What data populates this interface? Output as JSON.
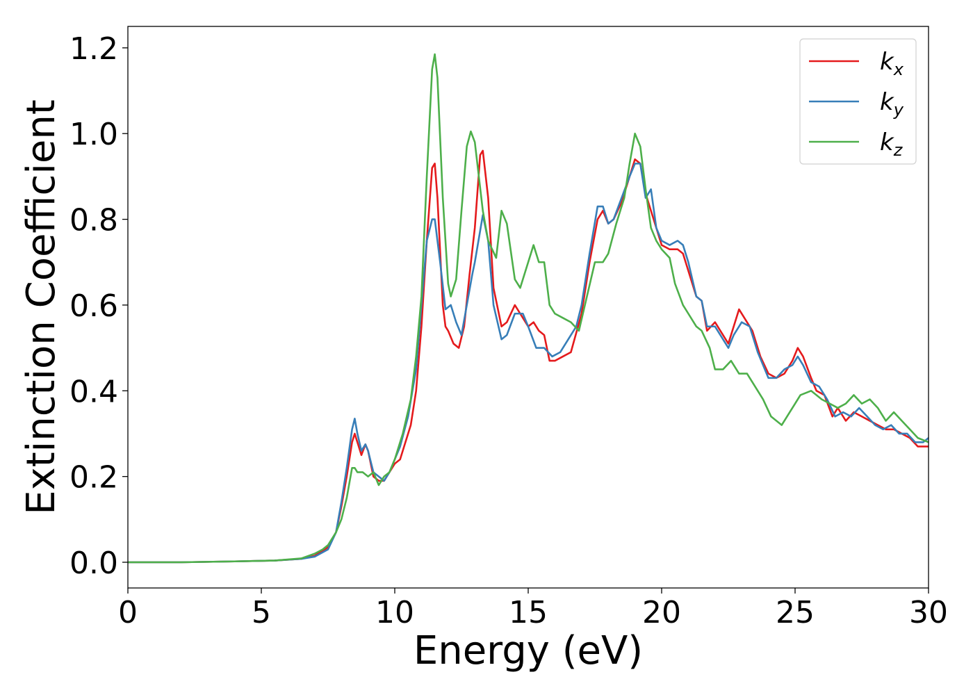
{
  "chart_data": {
    "type": "line",
    "title": "",
    "xlabel": "Energy (eV)",
    "ylabel": "Extinction Coefficient",
    "xlim": [
      0,
      30
    ],
    "ylim": [
      -0.06,
      1.25
    ],
    "xticks": [
      0,
      5,
      10,
      15,
      20,
      25,
      30
    ],
    "xtick_labels": [
      "0",
      "5",
      "10",
      "15",
      "20",
      "25",
      "30"
    ],
    "yticks": [
      0.0,
      0.2,
      0.4,
      0.6,
      0.8,
      1.0,
      1.2
    ],
    "ytick_labels": [
      "0.0",
      "0.2",
      "0.4",
      "0.6",
      "0.8",
      "1.0",
      "1.2"
    ],
    "grid": false,
    "legend_position": "top-right",
    "series": [
      {
        "name": "k",
        "subscript": "x",
        "color": "#e41a1c",
        "points": [
          [
            0,
            0.0
          ],
          [
            2,
            0.0
          ],
          [
            4,
            0.002
          ],
          [
            5.5,
            0.004
          ],
          [
            6.5,
            0.008
          ],
          [
            7.0,
            0.015
          ],
          [
            7.5,
            0.035
          ],
          [
            7.8,
            0.07
          ],
          [
            8.0,
            0.13
          ],
          [
            8.2,
            0.2
          ],
          [
            8.4,
            0.28
          ],
          [
            8.5,
            0.3
          ],
          [
            8.6,
            0.28
          ],
          [
            8.75,
            0.25
          ],
          [
            8.9,
            0.275
          ],
          [
            9.0,
            0.26
          ],
          [
            9.2,
            0.2
          ],
          [
            9.4,
            0.19
          ],
          [
            9.6,
            0.19
          ],
          [
            9.8,
            0.21
          ],
          [
            10.0,
            0.23
          ],
          [
            10.2,
            0.24
          ],
          [
            10.4,
            0.28
          ],
          [
            10.6,
            0.32
          ],
          [
            10.8,
            0.4
          ],
          [
            11.0,
            0.55
          ],
          [
            11.2,
            0.75
          ],
          [
            11.4,
            0.92
          ],
          [
            11.5,
            0.93
          ],
          [
            11.6,
            0.85
          ],
          [
            11.8,
            0.6
          ],
          [
            11.9,
            0.55
          ],
          [
            12.0,
            0.54
          ],
          [
            12.2,
            0.51
          ],
          [
            12.4,
            0.5
          ],
          [
            12.6,
            0.55
          ],
          [
            12.8,
            0.67
          ],
          [
            13.0,
            0.78
          ],
          [
            13.2,
            0.95
          ],
          [
            13.3,
            0.96
          ],
          [
            13.5,
            0.85
          ],
          [
            13.7,
            0.64
          ],
          [
            14.0,
            0.55
          ],
          [
            14.2,
            0.56
          ],
          [
            14.5,
            0.6
          ],
          [
            14.7,
            0.58
          ],
          [
            15.0,
            0.55
          ],
          [
            15.2,
            0.56
          ],
          [
            15.4,
            0.54
          ],
          [
            15.6,
            0.53
          ],
          [
            15.8,
            0.47
          ],
          [
            16.0,
            0.47
          ],
          [
            16.3,
            0.48
          ],
          [
            16.6,
            0.49
          ],
          [
            17.0,
            0.58
          ],
          [
            17.3,
            0.7
          ],
          [
            17.6,
            0.8
          ],
          [
            17.8,
            0.82
          ],
          [
            18.0,
            0.79
          ],
          [
            18.2,
            0.8
          ],
          [
            18.5,
            0.84
          ],
          [
            18.8,
            0.9
          ],
          [
            19.0,
            0.94
          ],
          [
            19.2,
            0.93
          ],
          [
            19.4,
            0.86
          ],
          [
            19.6,
            0.82
          ],
          [
            19.8,
            0.78
          ],
          [
            20.0,
            0.74
          ],
          [
            20.3,
            0.73
          ],
          [
            20.6,
            0.73
          ],
          [
            20.8,
            0.72
          ],
          [
            21.0,
            0.68
          ],
          [
            21.3,
            0.62
          ],
          [
            21.5,
            0.61
          ],
          [
            21.7,
            0.54
          ],
          [
            22.0,
            0.56
          ],
          [
            22.2,
            0.54
          ],
          [
            22.5,
            0.51
          ],
          [
            22.7,
            0.55
          ],
          [
            22.9,
            0.59
          ],
          [
            23.1,
            0.57
          ],
          [
            23.4,
            0.54
          ],
          [
            23.7,
            0.48
          ],
          [
            24.0,
            0.44
          ],
          [
            24.3,
            0.43
          ],
          [
            24.6,
            0.44
          ],
          [
            24.9,
            0.47
          ],
          [
            25.1,
            0.5
          ],
          [
            25.3,
            0.48
          ],
          [
            25.6,
            0.43
          ],
          [
            25.8,
            0.4
          ],
          [
            26.1,
            0.39
          ],
          [
            26.4,
            0.34
          ],
          [
            26.6,
            0.36
          ],
          [
            26.9,
            0.33
          ],
          [
            27.2,
            0.35
          ],
          [
            27.5,
            0.34
          ],
          [
            27.8,
            0.33
          ],
          [
            28.1,
            0.32
          ],
          [
            28.4,
            0.31
          ],
          [
            28.7,
            0.31
          ],
          [
            29.0,
            0.3
          ],
          [
            29.3,
            0.29
          ],
          [
            29.6,
            0.27
          ],
          [
            30.0,
            0.27
          ]
        ]
      },
      {
        "name": "k",
        "subscript": "y",
        "color": "#377eb8",
        "points": [
          [
            0,
            0.0
          ],
          [
            2,
            0.0
          ],
          [
            4,
            0.002
          ],
          [
            5.5,
            0.004
          ],
          [
            6.5,
            0.008
          ],
          [
            7.0,
            0.013
          ],
          [
            7.5,
            0.03
          ],
          [
            7.8,
            0.07
          ],
          [
            8.0,
            0.14
          ],
          [
            8.2,
            0.22
          ],
          [
            8.4,
            0.31
          ],
          [
            8.5,
            0.335
          ],
          [
            8.6,
            0.3
          ],
          [
            8.75,
            0.26
          ],
          [
            8.9,
            0.275
          ],
          [
            9.0,
            0.26
          ],
          [
            9.2,
            0.21
          ],
          [
            9.4,
            0.2
          ],
          [
            9.6,
            0.19
          ],
          [
            9.8,
            0.21
          ],
          [
            10.0,
            0.24
          ],
          [
            10.2,
            0.27
          ],
          [
            10.5,
            0.34
          ],
          [
            10.8,
            0.45
          ],
          [
            11.0,
            0.6
          ],
          [
            11.2,
            0.75
          ],
          [
            11.4,
            0.8
          ],
          [
            11.5,
            0.8
          ],
          [
            11.7,
            0.7
          ],
          [
            11.9,
            0.59
          ],
          [
            12.1,
            0.6
          ],
          [
            12.3,
            0.56
          ],
          [
            12.5,
            0.53
          ],
          [
            12.7,
            0.6
          ],
          [
            12.9,
            0.67
          ],
          [
            13.0,
            0.7
          ],
          [
            13.3,
            0.81
          ],
          [
            13.5,
            0.75
          ],
          [
            13.7,
            0.6
          ],
          [
            14.0,
            0.52
          ],
          [
            14.2,
            0.53
          ],
          [
            14.5,
            0.58
          ],
          [
            14.8,
            0.58
          ],
          [
            15.0,
            0.55
          ],
          [
            15.3,
            0.5
          ],
          [
            15.6,
            0.5
          ],
          [
            15.9,
            0.48
          ],
          [
            16.2,
            0.49
          ],
          [
            16.5,
            0.52
          ],
          [
            16.8,
            0.55
          ],
          [
            17.0,
            0.6
          ],
          [
            17.3,
            0.72
          ],
          [
            17.6,
            0.83
          ],
          [
            17.8,
            0.83
          ],
          [
            18.0,
            0.79
          ],
          [
            18.2,
            0.8
          ],
          [
            18.5,
            0.85
          ],
          [
            18.8,
            0.9
          ],
          [
            19.0,
            0.93
          ],
          [
            19.2,
            0.93
          ],
          [
            19.4,
            0.85
          ],
          [
            19.6,
            0.87
          ],
          [
            19.8,
            0.78
          ],
          [
            20.0,
            0.75
          ],
          [
            20.3,
            0.74
          ],
          [
            20.6,
            0.75
          ],
          [
            20.8,
            0.74
          ],
          [
            21.0,
            0.7
          ],
          [
            21.3,
            0.62
          ],
          [
            21.5,
            0.61
          ],
          [
            21.7,
            0.55
          ],
          [
            22.0,
            0.55
          ],
          [
            22.2,
            0.53
          ],
          [
            22.5,
            0.5
          ],
          [
            22.7,
            0.53
          ],
          [
            23.0,
            0.56
          ],
          [
            23.3,
            0.55
          ],
          [
            23.6,
            0.49
          ],
          [
            24.0,
            0.43
          ],
          [
            24.3,
            0.43
          ],
          [
            24.6,
            0.45
          ],
          [
            24.9,
            0.46
          ],
          [
            25.1,
            0.48
          ],
          [
            25.3,
            0.46
          ],
          [
            25.6,
            0.42
          ],
          [
            25.9,
            0.41
          ],
          [
            26.2,
            0.38
          ],
          [
            26.5,
            0.34
          ],
          [
            26.8,
            0.35
          ],
          [
            27.1,
            0.34
          ],
          [
            27.4,
            0.36
          ],
          [
            27.7,
            0.34
          ],
          [
            28.0,
            0.32
          ],
          [
            28.3,
            0.31
          ],
          [
            28.6,
            0.32
          ],
          [
            28.9,
            0.3
          ],
          [
            29.2,
            0.3
          ],
          [
            29.5,
            0.28
          ],
          [
            29.8,
            0.28
          ],
          [
            30.0,
            0.29
          ]
        ]
      },
      {
        "name": "k",
        "subscript": "z",
        "color": "#4daf4a",
        "points": [
          [
            0,
            0.0
          ],
          [
            2,
            0.0
          ],
          [
            4,
            0.002
          ],
          [
            5.5,
            0.004
          ],
          [
            6.5,
            0.009
          ],
          [
            7.0,
            0.02
          ],
          [
            7.3,
            0.03
          ],
          [
            7.5,
            0.04
          ],
          [
            7.8,
            0.07
          ],
          [
            8.0,
            0.1
          ],
          [
            8.2,
            0.15
          ],
          [
            8.4,
            0.22
          ],
          [
            8.5,
            0.22
          ],
          [
            8.6,
            0.21
          ],
          [
            8.8,
            0.21
          ],
          [
            9.0,
            0.2
          ],
          [
            9.2,
            0.21
          ],
          [
            9.4,
            0.18
          ],
          [
            9.6,
            0.2
          ],
          [
            9.8,
            0.21
          ],
          [
            10.0,
            0.24
          ],
          [
            10.3,
            0.3
          ],
          [
            10.6,
            0.38
          ],
          [
            10.8,
            0.48
          ],
          [
            11.0,
            0.62
          ],
          [
            11.2,
            0.9
          ],
          [
            11.4,
            1.15
          ],
          [
            11.5,
            1.185
          ],
          [
            11.6,
            1.13
          ],
          [
            11.8,
            0.85
          ],
          [
            12.0,
            0.65
          ],
          [
            12.1,
            0.62
          ],
          [
            12.3,
            0.66
          ],
          [
            12.5,
            0.82
          ],
          [
            12.7,
            0.97
          ],
          [
            12.85,
            1.005
          ],
          [
            13.0,
            0.98
          ],
          [
            13.3,
            0.82
          ],
          [
            13.5,
            0.75
          ],
          [
            13.8,
            0.71
          ],
          [
            14.0,
            0.82
          ],
          [
            14.2,
            0.79
          ],
          [
            14.5,
            0.66
          ],
          [
            14.7,
            0.64
          ],
          [
            15.0,
            0.7
          ],
          [
            15.2,
            0.74
          ],
          [
            15.4,
            0.7
          ],
          [
            15.6,
            0.7
          ],
          [
            15.8,
            0.6
          ],
          [
            16.0,
            0.58
          ],
          [
            16.3,
            0.57
          ],
          [
            16.6,
            0.56
          ],
          [
            16.9,
            0.54
          ],
          [
            17.2,
            0.62
          ],
          [
            17.5,
            0.7
          ],
          [
            17.8,
            0.7
          ],
          [
            18.0,
            0.72
          ],
          [
            18.3,
            0.79
          ],
          [
            18.6,
            0.85
          ],
          [
            18.8,
            0.93
          ],
          [
            19.0,
            1.0
          ],
          [
            19.2,
            0.97
          ],
          [
            19.4,
            0.87
          ],
          [
            19.6,
            0.78
          ],
          [
            19.8,
            0.75
          ],
          [
            20.0,
            0.73
          ],
          [
            20.3,
            0.71
          ],
          [
            20.5,
            0.65
          ],
          [
            20.8,
            0.6
          ],
          [
            21.0,
            0.58
          ],
          [
            21.3,
            0.55
          ],
          [
            21.5,
            0.54
          ],
          [
            21.8,
            0.5
          ],
          [
            22.0,
            0.45
          ],
          [
            22.3,
            0.45
          ],
          [
            22.6,
            0.47
          ],
          [
            22.9,
            0.44
          ],
          [
            23.2,
            0.44
          ],
          [
            23.5,
            0.41
          ],
          [
            23.8,
            0.38
          ],
          [
            24.1,
            0.34
          ],
          [
            24.5,
            0.32
          ],
          [
            24.8,
            0.35
          ],
          [
            25.2,
            0.39
          ],
          [
            25.6,
            0.4
          ],
          [
            26.0,
            0.38
          ],
          [
            26.3,
            0.37
          ],
          [
            26.6,
            0.36
          ],
          [
            26.9,
            0.37
          ],
          [
            27.2,
            0.39
          ],
          [
            27.5,
            0.37
          ],
          [
            27.8,
            0.38
          ],
          [
            28.1,
            0.36
          ],
          [
            28.4,
            0.33
          ],
          [
            28.7,
            0.35
          ],
          [
            29.0,
            0.33
          ],
          [
            29.3,
            0.31
          ],
          [
            29.6,
            0.29
          ],
          [
            30.0,
            0.28
          ]
        ]
      }
    ]
  }
}
